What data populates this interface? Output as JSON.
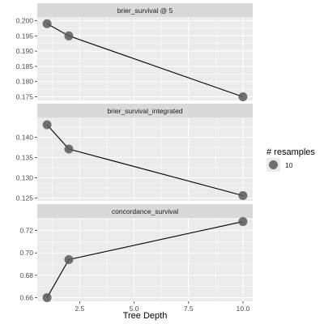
{
  "chart_data": {
    "type": "scatter",
    "xlabel": "Tree Depth",
    "xlim": [
      0.55,
      10.45
    ],
    "xticks": [
      2.5,
      5.0,
      7.5,
      10.0
    ],
    "xtick_labels": [
      "2.5",
      "5.0",
      "7.5",
      "10.0"
    ],
    "grid": true,
    "legend": {
      "title": "# resamples",
      "placement": "right",
      "entries": [
        {
          "label": "10"
        }
      ]
    },
    "colors": {
      "panel_bg": "#ebebeb",
      "strip_bg": "#d9d9d9",
      "grid_major": "#ffffff",
      "point": "#595959",
      "line": "#000000"
    },
    "panels": [
      {
        "title": "brier_survival @ 5",
        "x": [
          1,
          2,
          10
        ],
        "y": [
          0.199,
          0.195,
          0.175
        ],
        "ylim": [
          0.1738,
          0.2012
        ],
        "yticks": [
          0.175,
          0.18,
          0.185,
          0.19,
          0.195,
          0.2
        ],
        "ytick_labels": [
          "0.175",
          "0.180",
          "0.185",
          "0.190",
          "0.195",
          "0.200"
        ]
      },
      {
        "title": "brier_survival_integrated",
        "x": [
          1,
          2,
          10
        ],
        "y": [
          0.1431,
          0.1371,
          0.1256
        ],
        "ylim": [
          0.1243,
          0.1449
        ],
        "yticks": [
          0.125,
          0.13,
          0.135,
          0.14
        ],
        "ytick_labels": [
          "0.125",
          "0.130",
          "0.135",
          "0.140"
        ]
      },
      {
        "title": "concordance_survival",
        "x": [
          1,
          2,
          10
        ],
        "y": [
          0.66,
          0.694,
          0.728
        ],
        "ylim": [
          0.6567,
          0.7313
        ],
        "yticks": [
          0.66,
          0.68,
          0.7,
          0.72
        ],
        "ytick_labels": [
          "0.66",
          "0.68",
          "0.70",
          "0.72"
        ]
      }
    ]
  }
}
